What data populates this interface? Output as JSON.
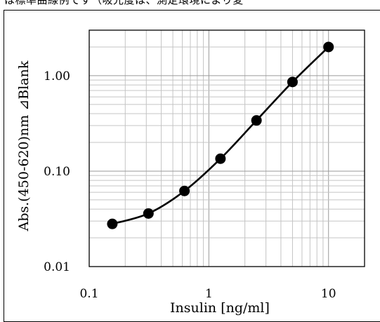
{
  "header_text": "は標準曲線例です（吸光度は、測定環境により変",
  "chart_data": {
    "type": "scatter",
    "title": "",
    "xlabel": "Insulin [ng/ml]",
    "ylabel": "Abs.(450-620)nm ⊿Blank",
    "x_scale": "log",
    "y_scale": "log",
    "xlim": [
      0.1,
      20
    ],
    "ylim": [
      0.01,
      3
    ],
    "x_tick_labels": [
      "0.1",
      "1",
      "10"
    ],
    "y_tick_labels": [
      "0.01",
      "0.10",
      "1.00"
    ],
    "x_ticks": [
      0.1,
      1,
      10
    ],
    "y_ticks": [
      0.01,
      0.1,
      1
    ],
    "grid": true,
    "series": [
      {
        "x": [
          0.156,
          0.3125,
          0.625,
          1.25,
          2.5,
          5,
          10
        ],
        "y": [
          0.028,
          0.036,
          0.062,
          0.135,
          0.34,
          0.86,
          2.0
        ]
      }
    ],
    "marker_color": "#000000",
    "line_color": "#000000"
  }
}
